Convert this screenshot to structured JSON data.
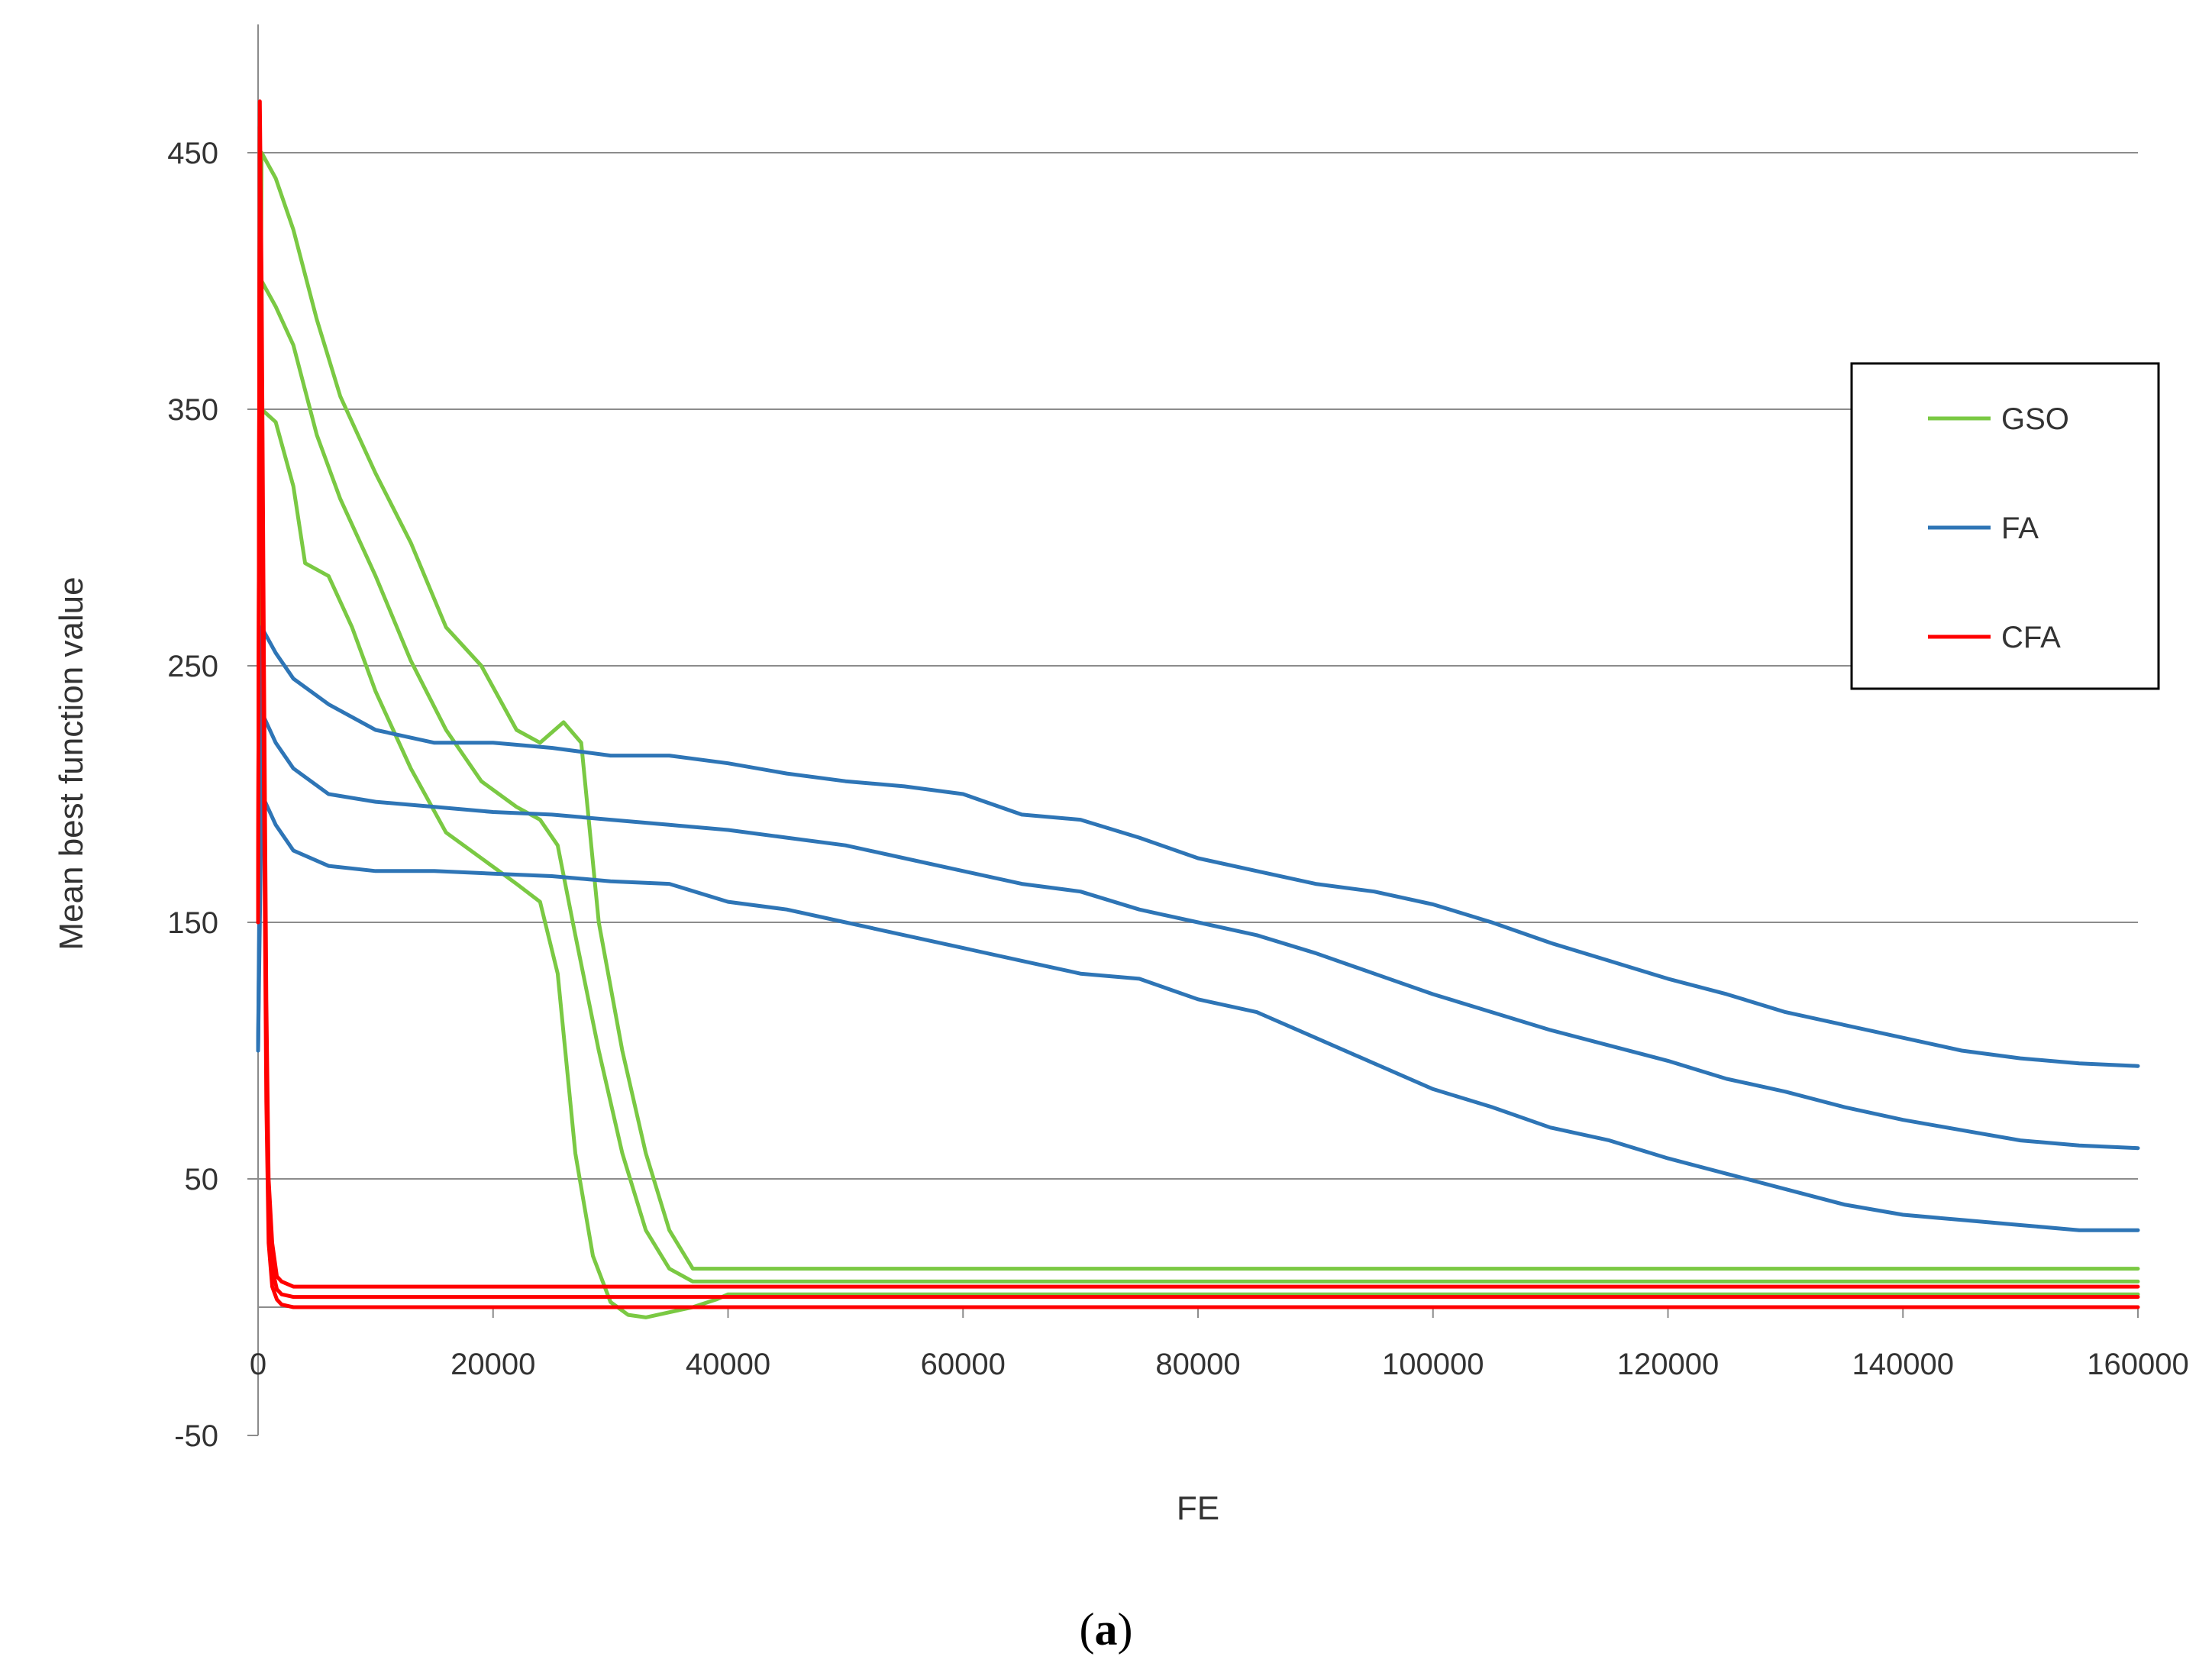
{
  "chart_data": {
    "type": "line",
    "title": "",
    "xlabel": "FE",
    "ylabel": "Mean best function value",
    "xlim": [
      0,
      160000
    ],
    "ylim": [
      -50,
      500
    ],
    "x_ticks": [
      "0",
      "20000",
      "40000",
      "60000",
      "80000",
      "100000",
      "120000",
      "140000",
      "160000"
    ],
    "y_ticks": [
      "-50",
      "50",
      "150",
      "250",
      "350",
      "450"
    ],
    "grid": "horizontal",
    "legend_position": "right",
    "legend": [
      "GSO",
      "FA",
      "CFA"
    ],
    "series": [
      {
        "name": "GSO",
        "group": "GSO",
        "color": "#7ac943",
        "points": [
          [
            0,
            150
          ],
          [
            300,
            450
          ],
          [
            1500,
            440
          ],
          [
            3000,
            420
          ],
          [
            5000,
            385
          ],
          [
            7000,
            355
          ],
          [
            10000,
            325
          ],
          [
            13000,
            298
          ],
          [
            16000,
            265
          ],
          [
            19000,
            250
          ],
          [
            22000,
            225
          ],
          [
            24000,
            220
          ],
          [
            26000,
            228
          ],
          [
            27500,
            220
          ],
          [
            29000,
            150
          ],
          [
            31000,
            100
          ],
          [
            33000,
            60
          ],
          [
            35000,
            30
          ],
          [
            37000,
            15
          ],
          [
            40000,
            15
          ],
          [
            160000,
            15
          ]
        ]
      },
      {
        "name": "GSO",
        "group": "GSO",
        "color": "#7ac943",
        "points": [
          [
            0,
            150
          ],
          [
            300,
            400
          ],
          [
            1500,
            390
          ],
          [
            3000,
            375
          ],
          [
            5000,
            340
          ],
          [
            7000,
            315
          ],
          [
            10000,
            285
          ],
          [
            13000,
            252
          ],
          [
            16000,
            225
          ],
          [
            19000,
            205
          ],
          [
            22000,
            195
          ],
          [
            24000,
            190
          ],
          [
            25500,
            180
          ],
          [
            27000,
            145
          ],
          [
            29000,
            100
          ],
          [
            31000,
            60
          ],
          [
            33000,
            30
          ],
          [
            35000,
            15
          ],
          [
            37000,
            10
          ],
          [
            40000,
            10
          ],
          [
            160000,
            10
          ]
        ]
      },
      {
        "name": "GSO",
        "group": "GSO",
        "color": "#7ac943",
        "points": [
          [
            0,
            150
          ],
          [
            300,
            350
          ],
          [
            1500,
            345
          ],
          [
            3000,
            320
          ],
          [
            4000,
            290
          ],
          [
            6000,
            285
          ],
          [
            8000,
            265
          ],
          [
            10000,
            240
          ],
          [
            13000,
            210
          ],
          [
            16000,
            185
          ],
          [
            19000,
            175
          ],
          [
            22000,
            165
          ],
          [
            24000,
            158
          ],
          [
            25500,
            130
          ],
          [
            27000,
            60
          ],
          [
            28500,
            20
          ],
          [
            30000,
            2
          ],
          [
            31500,
            -3
          ],
          [
            33000,
            -4
          ],
          [
            35000,
            -2
          ],
          [
            37000,
            0
          ],
          [
            39000,
            3
          ],
          [
            40000,
            5
          ],
          [
            160000,
            5
          ]
        ]
      },
      {
        "name": "FA",
        "group": "FA",
        "color": "#2e75b6",
        "points": [
          [
            0,
            100
          ],
          [
            300,
            265
          ],
          [
            1500,
            255
          ],
          [
            3000,
            245
          ],
          [
            6000,
            235
          ],
          [
            10000,
            225
          ],
          [
            15000,
            220
          ],
          [
            20000,
            220
          ],
          [
            25000,
            218
          ],
          [
            30000,
            215
          ],
          [
            35000,
            215
          ],
          [
            40000,
            212
          ],
          [
            45000,
            208
          ],
          [
            50000,
            205
          ],
          [
            55000,
            203
          ],
          [
            60000,
            200
          ],
          [
            65000,
            192
          ],
          [
            70000,
            190
          ],
          [
            75000,
            183
          ],
          [
            80000,
            175
          ],
          [
            85000,
            170
          ],
          [
            90000,
            165
          ],
          [
            95000,
            162
          ],
          [
            100000,
            157
          ],
          [
            105000,
            150
          ],
          [
            110000,
            142
          ],
          [
            115000,
            135
          ],
          [
            120000,
            128
          ],
          [
            125000,
            122
          ],
          [
            130000,
            115
          ],
          [
            135000,
            110
          ],
          [
            140000,
            105
          ],
          [
            145000,
            100
          ],
          [
            150000,
            97
          ],
          [
            155000,
            95
          ],
          [
            160000,
            94
          ]
        ]
      },
      {
        "name": "FA",
        "group": "FA",
        "color": "#2e75b6",
        "points": [
          [
            0,
            100
          ],
          [
            300,
            232
          ],
          [
            1500,
            220
          ],
          [
            3000,
            210
          ],
          [
            6000,
            200
          ],
          [
            10000,
            197
          ],
          [
            15000,
            195
          ],
          [
            20000,
            193
          ],
          [
            25000,
            192
          ],
          [
            30000,
            190
          ],
          [
            35000,
            188
          ],
          [
            40000,
            186
          ],
          [
            45000,
            183
          ],
          [
            50000,
            180
          ],
          [
            55000,
            175
          ],
          [
            60000,
            170
          ],
          [
            65000,
            165
          ],
          [
            70000,
            162
          ],
          [
            75000,
            155
          ],
          [
            80000,
            150
          ],
          [
            85000,
            145
          ],
          [
            90000,
            138
          ],
          [
            95000,
            130
          ],
          [
            100000,
            122
          ],
          [
            105000,
            115
          ],
          [
            110000,
            108
          ],
          [
            115000,
            102
          ],
          [
            120000,
            96
          ],
          [
            125000,
            89
          ],
          [
            130000,
            84
          ],
          [
            135000,
            78
          ],
          [
            140000,
            73
          ],
          [
            145000,
            69
          ],
          [
            150000,
            65
          ],
          [
            155000,
            63
          ],
          [
            160000,
            62
          ]
        ]
      },
      {
        "name": "FA",
        "group": "FA",
        "color": "#2e75b6",
        "points": [
          [
            0,
            100
          ],
          [
            300,
            200
          ],
          [
            1500,
            188
          ],
          [
            3000,
            178
          ],
          [
            6000,
            172
          ],
          [
            10000,
            170
          ],
          [
            15000,
            170
          ],
          [
            20000,
            169
          ],
          [
            25000,
            168
          ],
          [
            30000,
            166
          ],
          [
            35000,
            165
          ],
          [
            40000,
            158
          ],
          [
            45000,
            155
          ],
          [
            50000,
            150
          ],
          [
            55000,
            145
          ],
          [
            60000,
            140
          ],
          [
            65000,
            135
          ],
          [
            70000,
            130
          ],
          [
            75000,
            128
          ],
          [
            80000,
            120
          ],
          [
            85000,
            115
          ],
          [
            90000,
            105
          ],
          [
            95000,
            95
          ],
          [
            100000,
            85
          ],
          [
            105000,
            78
          ],
          [
            110000,
            70
          ],
          [
            115000,
            65
          ],
          [
            120000,
            58
          ],
          [
            125000,
            52
          ],
          [
            130000,
            46
          ],
          [
            135000,
            40
          ],
          [
            140000,
            36
          ],
          [
            145000,
            34
          ],
          [
            150000,
            32
          ],
          [
            155000,
            30
          ],
          [
            160000,
            30
          ]
        ]
      },
      {
        "name": "CFA",
        "group": "CFA",
        "color": "#ff0000",
        "points": [
          [
            0,
            150
          ],
          [
            150,
            470
          ],
          [
            300,
            400
          ],
          [
            500,
            250
          ],
          [
            700,
            120
          ],
          [
            900,
            50
          ],
          [
            1200,
            25
          ],
          [
            1600,
            12
          ],
          [
            2000,
            10
          ],
          [
            3000,
            8
          ],
          [
            5000,
            8
          ],
          [
            160000,
            8
          ]
        ]
      },
      {
        "name": "CFA",
        "group": "CFA",
        "color": "#ff0000",
        "points": [
          [
            0,
            150
          ],
          [
            150,
            460
          ],
          [
            300,
            380
          ],
          [
            500,
            220
          ],
          [
            700,
            100
          ],
          [
            900,
            40
          ],
          [
            1200,
            15
          ],
          [
            1600,
            7
          ],
          [
            2000,
            5
          ],
          [
            3000,
            4
          ],
          [
            5000,
            4
          ],
          [
            160000,
            4
          ]
        ]
      },
      {
        "name": "CFA",
        "group": "CFA",
        "color": "#ff0000",
        "points": [
          [
            0,
            150
          ],
          [
            150,
            455
          ],
          [
            300,
            360
          ],
          [
            500,
            200
          ],
          [
            700,
            80
          ],
          [
            900,
            25
          ],
          [
            1200,
            8
          ],
          [
            1600,
            3
          ],
          [
            2000,
            1
          ],
          [
            3000,
            0
          ],
          [
            5000,
            0
          ],
          [
            160000,
            0
          ]
        ]
      }
    ]
  },
  "caption": {
    "open": "(",
    "letter": "a",
    "close": ")"
  }
}
